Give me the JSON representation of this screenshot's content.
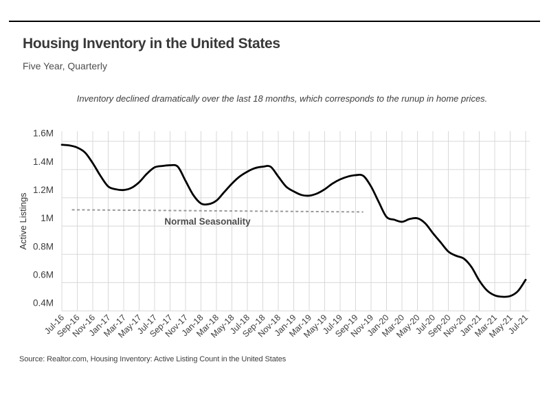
{
  "header": {
    "title": "Housing Inventory in the United States",
    "subtitle": "Five Year, Quarterly"
  },
  "annotation": "Inventory declined dramatically over the last 18 months, which corresponds to the runup in home prices.",
  "source": "Source:  Realtor.com, Housing Inventory: Active Listing Count in the United States",
  "colors": {
    "line": "#000000",
    "grid": "#d8d8d8",
    "dashed_line": "#999999",
    "tick_text": "#3d3d3d",
    "axis_title_text": "#333333",
    "seasonality_label": "#4d4d4d"
  },
  "chart_data": {
    "type": "line",
    "title": "Housing Inventory in the United States",
    "subtitle": "Five Year, Quarterly",
    "xlabel": "",
    "ylabel": "Active Listings",
    "ylim": [
      0.4,
      1.6
    ],
    "y_ticks": [
      "0.4M",
      "0.6M",
      "0.8M",
      "1M",
      "1.2M",
      "1.4M",
      "1.6M"
    ],
    "y_tick_values": [
      0.4,
      0.6,
      0.8,
      1.0,
      1.2,
      1.4,
      1.6
    ],
    "x_ticks": [
      "Jul-16",
      "Sep-16",
      "Nov-16",
      "Jan-17",
      "Mar-17",
      "May-17",
      "Jul-17",
      "Sep-17",
      "Nov-17",
      "Jan-18",
      "Mar-18",
      "May-18",
      "Jul-18",
      "Sep-18",
      "Nov-18",
      "Jan-19",
      "Mar-19",
      "May-19",
      "Jul-19",
      "Sep-19",
      "Nov-19",
      "Jan-20",
      "Mar-20",
      "May-20",
      "Jul-20",
      "Sep-20",
      "Nov-20",
      "Jan-21",
      "Mar-21",
      "May-21",
      "Jul-21"
    ],
    "grid": true,
    "legend": false,
    "series": [
      {
        "name": "Active Listings (millions)",
        "x": [
          "Jul-16",
          "Aug-16",
          "Sep-16",
          "Oct-16",
          "Nov-16",
          "Dec-16",
          "Jan-17",
          "Feb-17",
          "Mar-17",
          "Apr-17",
          "May-17",
          "Jun-17",
          "Jul-17",
          "Aug-17",
          "Sep-17",
          "Oct-17",
          "Nov-17",
          "Dec-17",
          "Jan-18",
          "Feb-18",
          "Mar-18",
          "Apr-18",
          "May-18",
          "Jun-18",
          "Jul-18",
          "Aug-18",
          "Sep-18",
          "Oct-18",
          "Nov-18",
          "Dec-18",
          "Jan-19",
          "Feb-19",
          "Mar-19",
          "Apr-19",
          "May-19",
          "Jun-19",
          "Jul-19",
          "Aug-19",
          "Sep-19",
          "Oct-19",
          "Nov-19",
          "Dec-19",
          "Jan-20",
          "Feb-20",
          "Mar-20",
          "Apr-20",
          "May-20",
          "Jun-20",
          "Jul-20",
          "Aug-20",
          "Sep-20",
          "Oct-20",
          "Nov-20",
          "Dec-20",
          "Jan-21",
          "Feb-21",
          "Mar-21",
          "Apr-21",
          "May-21",
          "Jun-21",
          "Jul-21"
        ],
        "values": [
          1.575,
          1.57,
          1.555,
          1.52,
          1.445,
          1.355,
          1.28,
          1.26,
          1.255,
          1.27,
          1.31,
          1.37,
          1.415,
          1.425,
          1.43,
          1.42,
          1.32,
          1.22,
          1.16,
          1.155,
          1.18,
          1.24,
          1.3,
          1.35,
          1.385,
          1.41,
          1.42,
          1.42,
          1.35,
          1.28,
          1.245,
          1.22,
          1.215,
          1.23,
          1.26,
          1.3,
          1.33,
          1.35,
          1.36,
          1.355,
          1.28,
          1.17,
          1.065,
          1.045,
          1.03,
          1.05,
          1.055,
          1.02,
          0.95,
          0.885,
          0.82,
          0.79,
          0.77,
          0.71,
          0.615,
          0.545,
          0.51,
          0.5,
          0.505,
          0.54,
          0.62
        ]
      }
    ],
    "normal_seasonality": {
      "label": "Normal Seasonality",
      "start_month_index": 1.3,
      "end_month_index": 39,
      "start_value": 1.115,
      "end_value": 1.1
    }
  }
}
